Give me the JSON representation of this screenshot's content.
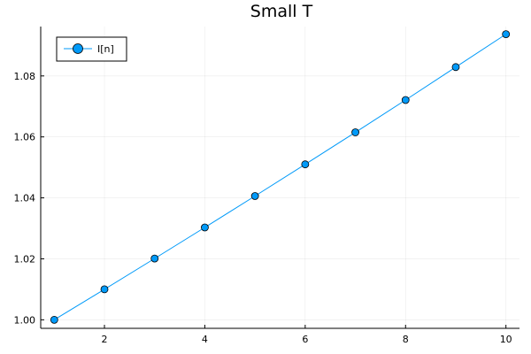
{
  "chart_data": {
    "type": "line",
    "title": "Small T",
    "xlabel": "",
    "ylabel": "",
    "xlim": [
      0.73,
      10.27
    ],
    "ylim": [
      0.9972,
      1.0962
    ],
    "xticks": [
      2,
      4,
      6,
      8,
      10
    ],
    "yticks": [
      1.0,
      1.02,
      1.04,
      1.06,
      1.08
    ],
    "ytick_labels": [
      "1.00",
      "1.02",
      "1.04",
      "1.06",
      "1.08"
    ],
    "grid": true,
    "legend_position": "top-left",
    "series": [
      {
        "name": "I[n]",
        "color": "#009af9",
        "marker": "circle",
        "x": [
          1,
          2,
          3,
          4,
          5,
          6,
          7,
          8,
          9,
          10
        ],
        "y": [
          1.0,
          1.01,
          1.0201,
          1.0303,
          1.0406,
          1.051,
          1.0615,
          1.0721,
          1.0829,
          1.0937
        ]
      }
    ]
  }
}
